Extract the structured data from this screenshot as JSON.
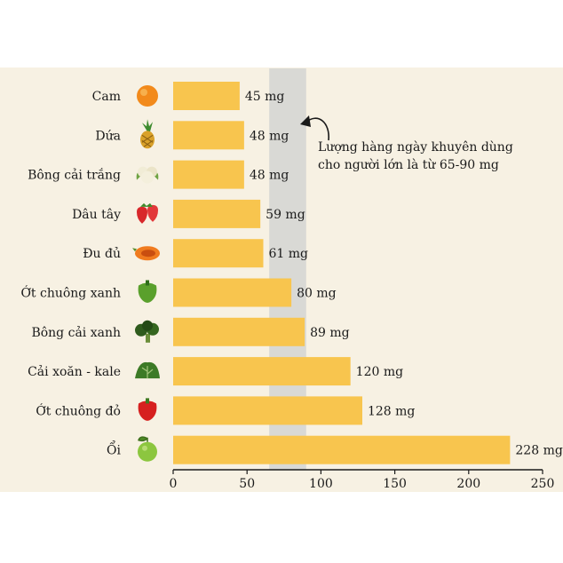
{
  "chart_data": {
    "type": "bar",
    "orientation": "horizontal",
    "categories": [
      "Cam",
      "Dứa",
      "Bông cải trắng",
      "Dâu tây",
      "Đu đủ",
      "Ớt chuông xanh",
      "Bông cải xanh",
      "Cải xoăn - kale",
      "Ớt chuông đỏ",
      "Ổi"
    ],
    "values": [
      45,
      48,
      48,
      59,
      61,
      80,
      89,
      120,
      128,
      228
    ],
    "value_labels": [
      "45 mg",
      "48 mg",
      "48 mg",
      "59 mg",
      "61 mg",
      "80 mg",
      "89 mg",
      "120 mg",
      "128 mg",
      "228 mg"
    ],
    "icons": [
      "orange-icon",
      "pineapple-icon",
      "cauliflower-icon",
      "strawberry-icon",
      "papaya-icon",
      "green-pepper-icon",
      "broccoli-icon",
      "kale-icon",
      "red-pepper-icon",
      "guava-icon"
    ],
    "xlim": [
      0,
      250
    ],
    "xticks": [
      "0",
      "50",
      "100",
      "150",
      "200",
      "250"
    ],
    "xtick_values": [
      0,
      50,
      100,
      150,
      200,
      250
    ],
    "grid": false,
    "reference_band": {
      "range": [
        65,
        90
      ],
      "annotation_lines": [
        "Lượng hàng ngày khuyên dùng",
        "cho người lớn là từ 65-90 mg"
      ],
      "color": "#d9d9d5"
    },
    "colors": {
      "bar": "#f8c54e",
      "background": "#f7f1e3",
      "axis": "#1a1a1a"
    }
  }
}
